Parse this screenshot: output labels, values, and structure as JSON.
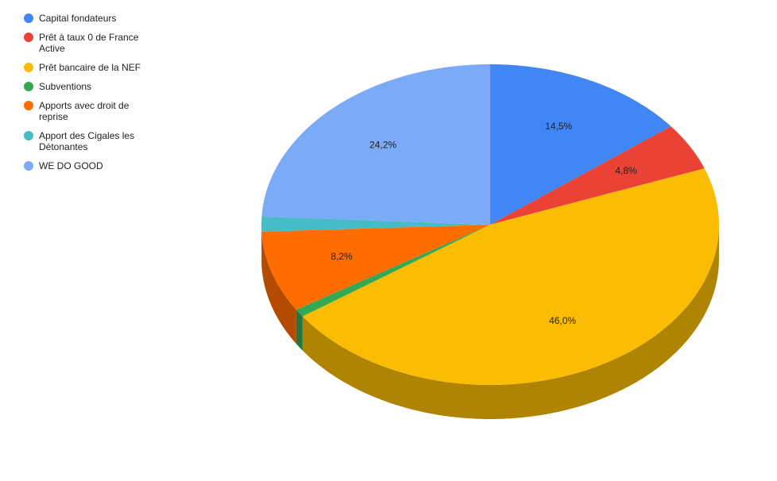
{
  "chart_data": {
    "type": "pie3d",
    "categories": [
      "Capital fondateurs",
      "Prêt à taux 0 de France Active",
      "Prêt bancaire de la NEF",
      "Subventions",
      "Apports avec droit de reprise",
      "Apport des Cigales les Détonantes",
      "WE DO GOOD"
    ],
    "values": [
      14.5,
      4.8,
      46.0,
      0.8,
      8.2,
      1.5,
      24.2
    ],
    "value_labels": [
      "14,5%",
      "4,8%",
      "46,0%",
      null,
      "8,2%",
      null,
      "24,2%"
    ],
    "colors": [
      "#4285f4",
      "#ea4335",
      "#fbbc04",
      "#34a853",
      "#ff6d01",
      "#46bdc6",
      "#7baaf7"
    ],
    "legend": "left"
  }
}
